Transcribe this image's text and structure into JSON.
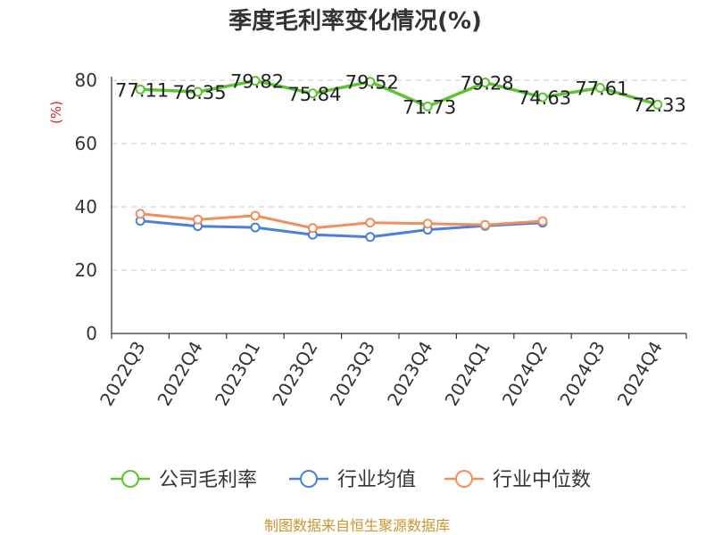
{
  "chart_data": {
    "type": "line",
    "title": "季度毛利率变化情况(%)",
    "ylabel": "(%)",
    "xlabel": "",
    "categories": [
      "2022Q3",
      "2022Q4",
      "2023Q1",
      "2023Q2",
      "2023Q3",
      "2023Q4",
      "2024Q1",
      "2024Q2",
      "2024Q3",
      "2024Q4"
    ],
    "ylim": [
      0,
      80
    ],
    "yticks": [
      0,
      20,
      40,
      60,
      80
    ],
    "grid": true,
    "legend_position": "bottom",
    "series": [
      {
        "name": "公司毛利率",
        "color": "#5cc430",
        "values": [
          77.11,
          76.35,
          79.82,
          75.84,
          79.52,
          71.73,
          79.28,
          74.63,
          77.61,
          72.33
        ],
        "labels": [
          "77.11",
          "76.35",
          "79.82",
          "75.84",
          "79.52",
          "71.73",
          "79.28",
          "74.63",
          "77.61",
          "72.33"
        ]
      },
      {
        "name": "行业均值",
        "color": "#4a7fdc",
        "values": [
          35.6,
          33.9,
          33.5,
          31.2,
          30.5,
          32.8,
          34.0,
          35.0,
          null,
          null
        ]
      },
      {
        "name": "行业中位数",
        "color": "#f28e5b",
        "values": [
          37.8,
          36.0,
          37.2,
          33.3,
          35.0,
          34.7,
          34.3,
          35.5,
          null,
          null
        ]
      }
    ],
    "source": "制图数据来自恒生聚源数据库"
  }
}
